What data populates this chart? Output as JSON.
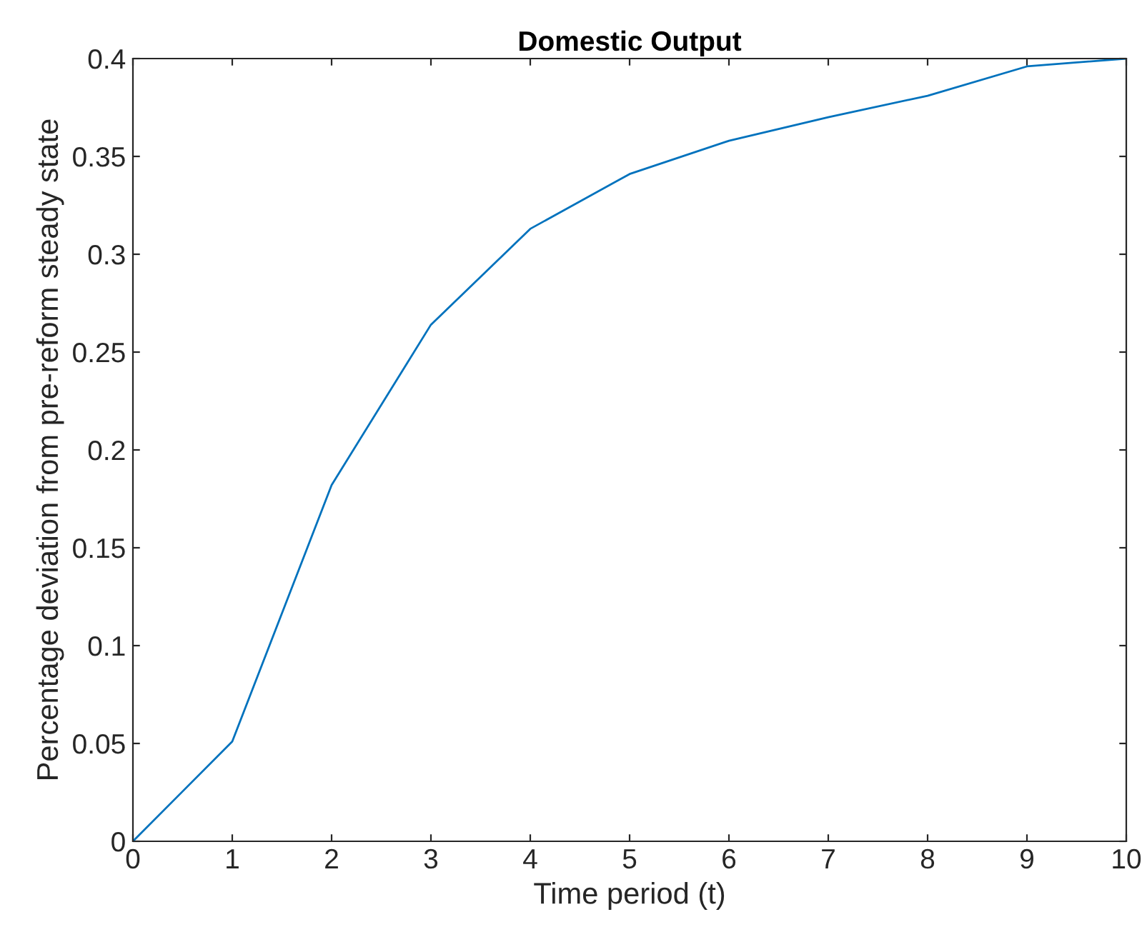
{
  "chart_data": {
    "type": "line",
    "title": "Domestic Output",
    "xlabel": "Time period (t)",
    "ylabel": "Percentage deviation from pre-reform steady state",
    "x": [
      0,
      1,
      2,
      3,
      4,
      5,
      6,
      7,
      8,
      9,
      10
    ],
    "series": [
      {
        "color": "#0072bd",
        "values": [
          0,
          0.051,
          0.182,
          0.264,
          0.313,
          0.341,
          0.358,
          0.37,
          0.381,
          0.396,
          0.4
        ]
      }
    ],
    "xlim": [
      0,
      10
    ],
    "xticks": [
      0,
      1,
      2,
      3,
      4,
      5,
      6,
      7,
      8,
      9,
      10
    ],
    "ylim": [
      0,
      0.4
    ],
    "yticks": [
      0,
      0.05,
      0.1,
      0.15,
      0.2,
      0.25,
      0.3,
      0.35,
      0.4
    ],
    "grid": false
  }
}
